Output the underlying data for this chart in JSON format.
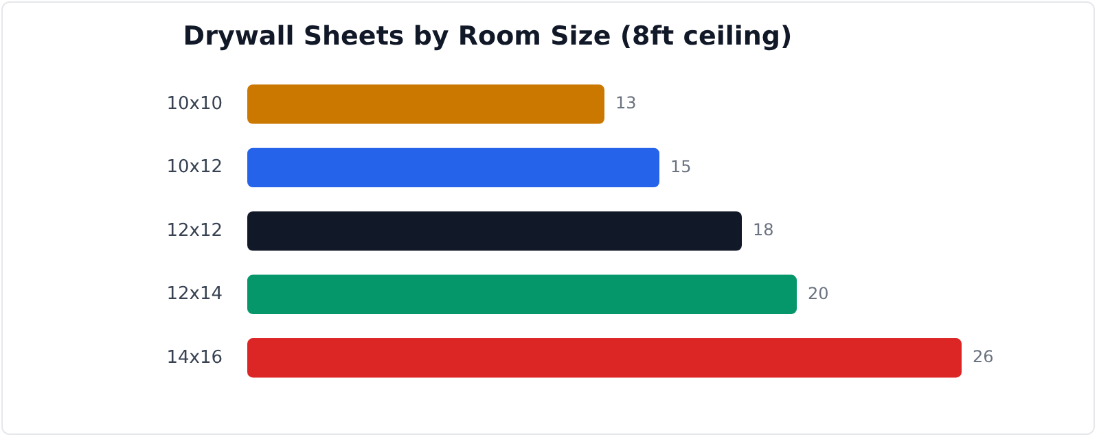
{
  "chart_data": {
    "type": "bar",
    "orientation": "horizontal",
    "title": "Drywall Sheets by Room Size (8ft ceiling)",
    "categories": [
      "10x10",
      "10x12",
      "12x12",
      "12x14",
      "14x16"
    ],
    "values": [
      13,
      15,
      18,
      20,
      26
    ],
    "colors": [
      "#ca7800",
      "#2563eb",
      "#111827",
      "#059669",
      "#dc2626"
    ],
    "data_labels": true,
    "legend": false,
    "tick_labels": "y"
  }
}
